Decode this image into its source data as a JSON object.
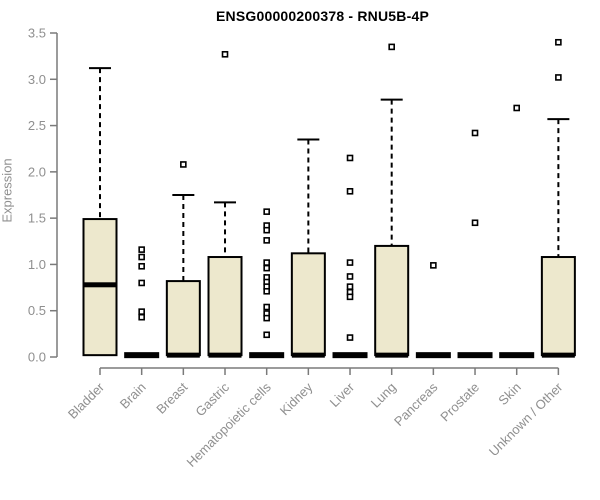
{
  "chart_data": {
    "type": "box",
    "title": "ENSG00000200378 - RNU5B-4P",
    "xlabel": "",
    "ylabel": "Expression",
    "ylim": [
      0.0,
      3.5
    ],
    "yticks": [
      "0.0",
      "0.5",
      "1.0",
      "1.5",
      "2.0",
      "2.5",
      "3.0",
      "3.5"
    ],
    "grid": false,
    "legend": "none",
    "marker_style": "open-square",
    "whisker_style": "dashed",
    "colors": {
      "box_fill": "#EDE8CD",
      "box_border": "#000000",
      "median": "#000000",
      "axis_line": "#7a7a7a",
      "tick_label": "#8f8f8f",
      "title": "#000000"
    },
    "categories": [
      "Bladder",
      "Brain",
      "Breast",
      "Gastric",
      "Hematopoietic cells",
      "Kidney",
      "Liver",
      "Lung",
      "Pancreas",
      "Prostate",
      "Skin",
      "Unknown / Other"
    ],
    "series": [
      {
        "label": "Bladder",
        "whisker_low": 0.02,
        "q1": 0.02,
        "median": 0.78,
        "q3": 1.49,
        "whisker_high": 3.12,
        "outliers": []
      },
      {
        "label": "Brain",
        "whisker_low": 0.02,
        "q1": 0.02,
        "median": 0.02,
        "q3": 0.02,
        "whisker_high": 0.02,
        "outliers": [
          1.16,
          1.08,
          0.98,
          0.8,
          0.49,
          0.43
        ]
      },
      {
        "label": "Breast",
        "whisker_low": 0.02,
        "q1": 0.02,
        "median": 0.02,
        "q3": 0.82,
        "whisker_high": 1.75,
        "outliers": [
          2.08
        ]
      },
      {
        "label": "Gastric",
        "whisker_low": 0.02,
        "q1": 0.02,
        "median": 0.02,
        "q3": 1.08,
        "whisker_high": 1.67,
        "outliers": [
          3.27
        ]
      },
      {
        "label": "Hematopoietic cells",
        "whisker_low": 0.02,
        "q1": 0.02,
        "median": 0.02,
        "q3": 0.02,
        "whisker_high": 0.02,
        "outliers": [
          1.57,
          1.42,
          1.37,
          1.26,
          1.02,
          0.96,
          0.86,
          0.81,
          0.76,
          0.71,
          0.54,
          0.47,
          0.42,
          0.24
        ]
      },
      {
        "label": "Kidney",
        "whisker_low": 0.02,
        "q1": 0.02,
        "median": 0.02,
        "q3": 1.12,
        "whisker_high": 2.35,
        "outliers": []
      },
      {
        "label": "Liver",
        "whisker_low": 0.02,
        "q1": 0.02,
        "median": 0.02,
        "q3": 0.02,
        "whisker_high": 0.02,
        "outliers": [
          2.15,
          1.79,
          1.02,
          0.87,
          0.76,
          0.7,
          0.65,
          0.21
        ]
      },
      {
        "label": "Lung",
        "whisker_low": 0.02,
        "q1": 0.02,
        "median": 0.02,
        "q3": 1.2,
        "whisker_high": 2.78,
        "outliers": [
          3.35
        ]
      },
      {
        "label": "Pancreas",
        "whisker_low": 0.02,
        "q1": 0.02,
        "median": 0.02,
        "q3": 0.02,
        "whisker_high": 0.02,
        "outliers": [
          0.99
        ]
      },
      {
        "label": "Prostate",
        "whisker_low": 0.02,
        "q1": 0.02,
        "median": 0.02,
        "q3": 0.02,
        "whisker_high": 0.02,
        "outliers": [
          2.42,
          1.45
        ]
      },
      {
        "label": "Skin",
        "whisker_low": 0.02,
        "q1": 0.02,
        "median": 0.02,
        "q3": 0.02,
        "whisker_high": 0.02,
        "outliers": [
          2.69
        ]
      },
      {
        "label": "Unknown / Other",
        "whisker_low": 0.02,
        "q1": 0.02,
        "median": 0.02,
        "q3": 1.08,
        "whisker_high": 2.57,
        "outliers": [
          3.4,
          3.02
        ]
      }
    ]
  }
}
